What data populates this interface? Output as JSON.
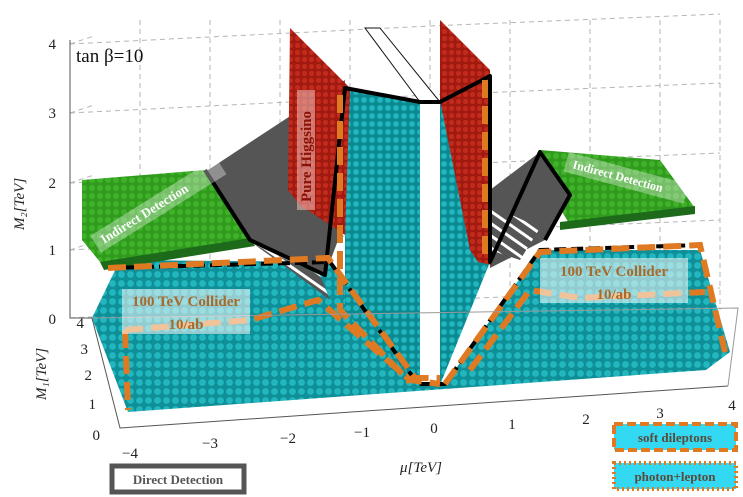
{
  "chart_data": {
    "type": "3d-surface",
    "annotation": "tan β=10",
    "axes": {
      "x": {
        "label": "μ[TeV]",
        "ticks": [
          "−4",
          "−3",
          "−2",
          "−1",
          "0",
          "1",
          "2",
          "3",
          "4"
        ],
        "range": [
          -4,
          4
        ]
      },
      "y": {
        "label": "M₁[TeV]",
        "ticks": [
          "0",
          "1",
          "2",
          "3",
          "4"
        ],
        "range": [
          0,
          4
        ]
      },
      "z": {
        "label": "M₂[TeV]",
        "ticks": [
          "0",
          "1",
          "2",
          "3",
          "4"
        ],
        "range": [
          0,
          4
        ]
      }
    },
    "grid": true,
    "regions": [
      {
        "name": "Indirect Detection",
        "color": "#35a51f",
        "side": "left"
      },
      {
        "name": "Indirect Detection",
        "color": "#35a51f",
        "side": "right"
      },
      {
        "name": "Pure Higgsino",
        "color": "#b01e12"
      },
      {
        "name": "100 TeV Collider 10/ab",
        "color": "#e07a22",
        "side": "left"
      },
      {
        "name": "100 TeV Collider 10/ab",
        "color": "#e07a22",
        "side": "right"
      },
      {
        "name": "Direct Detection",
        "color": "#545454"
      },
      {
        "name": "viable points",
        "color": "#1aa8b0"
      }
    ],
    "labels": {
      "higgsino": "Pure Higgsino",
      "indirect_left": "Indirect Detection",
      "indirect_right": "Indirect Detection",
      "collider_left_1": "100 TeV Collider",
      "collider_left_2": "10/ab",
      "collider_right_1": "100 TeV Collider",
      "collider_right_2": "10/ab"
    },
    "legend": [
      {
        "label": "soft dileptons",
        "fill": "#33d8f2",
        "border": "#e07a22",
        "style": "dashed"
      },
      {
        "label": "photon+lepton",
        "fill": "#33d8f2",
        "border": "#e07a22",
        "style": "dotted"
      },
      {
        "label": "Direct Detection",
        "fill": "#ffffff",
        "border": "#555555",
        "style": "solid"
      }
    ],
    "colors": {
      "dots": "#1aa8b0",
      "dot_dark": "#0f7f86",
      "green": "#35a51f",
      "dark_green": "#1d6a1a",
      "red": "#b01e12",
      "orange": "#e07a22",
      "grey": "#545454"
    }
  }
}
